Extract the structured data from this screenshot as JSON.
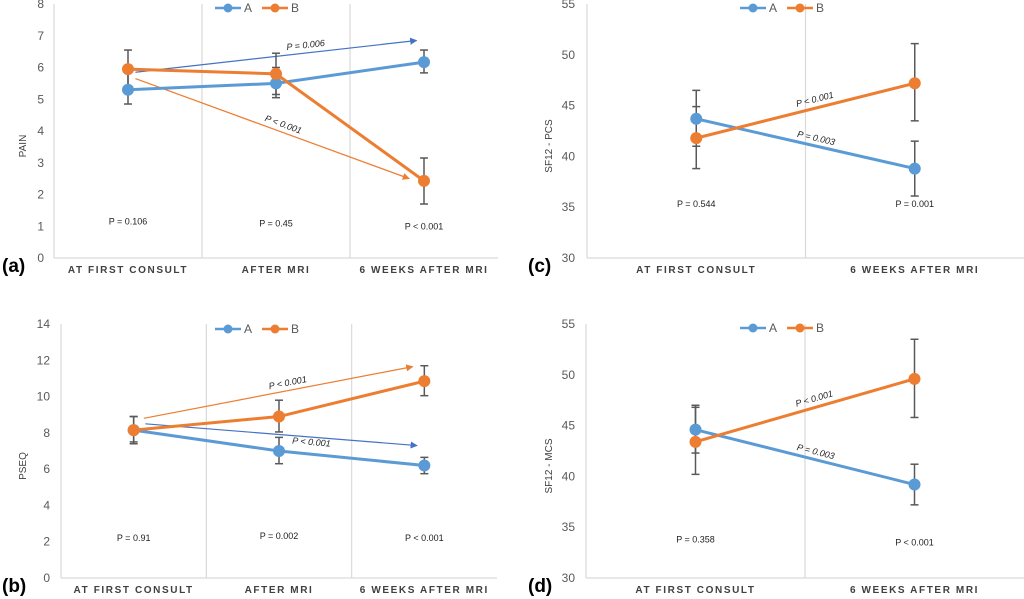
{
  "colors": {
    "A": "#5b9bd5",
    "B": "#ed7d31",
    "arrowA": "#4472c4",
    "arrowB": "#ed7d31",
    "errorbar": "#595959",
    "grid": "#d9d9d9"
  },
  "legend": [
    "A",
    "B"
  ],
  "chart_data": [
    {
      "panel": "(a)",
      "type": "line",
      "ylabel": "PAIN",
      "ylim": [
        0,
        8
      ],
      "yticks": [
        0,
        1,
        2,
        3,
        4,
        5,
        6,
        7,
        8
      ],
      "categories": [
        "AT FIRST CONSULT",
        "AFTER MRI",
        "6 WEEKS AFTER MRI"
      ],
      "series": [
        {
          "name": "A",
          "values": [
            5.3,
            5.5,
            6.17
          ],
          "err_low": [
            4.85,
            5.05,
            5.83
          ],
          "err_high": [
            5.9,
            6.0,
            6.55
          ]
        },
        {
          "name": "B",
          "values": [
            5.95,
            5.8,
            2.43
          ],
          "err_low": [
            5.4,
            5.15,
            1.7
          ],
          "err_high": [
            6.55,
            6.45,
            3.15
          ]
        }
      ],
      "group_pvalues": [
        "P = 0.106",
        "P = 0.45",
        "P < 0.001"
      ],
      "group_pvalue_levels": [
        1.05,
        1.0,
        0.9
      ],
      "trend_arrows": [
        {
          "series": "A",
          "label": "P = 0.006",
          "from": [
            0.05,
            5.85
          ],
          "to": [
            1.95,
            6.85
          ]
        },
        {
          "series": "B",
          "label": "P < 0.001",
          "from": [
            0.05,
            5.65
          ],
          "to": [
            1.9,
            2.5
          ]
        }
      ],
      "legend": "top-center",
      "grid": "vertical-category-separators"
    },
    {
      "panel": "(b)",
      "type": "line",
      "ylabel": "PSEQ",
      "ylim": [
        0,
        14
      ],
      "yticks": [
        0,
        2,
        4,
        6,
        8,
        10,
        12,
        14
      ],
      "categories": [
        "AT FIRST CONSULT",
        "AFTER MRI",
        "6 WEEKS AFTER MRI"
      ],
      "series": [
        {
          "name": "A",
          "values": [
            8.15,
            7.0,
            6.2
          ],
          "err_low": [
            7.4,
            6.3,
            5.75
          ],
          "err_high": [
            8.9,
            7.75,
            6.65
          ]
        },
        {
          "name": "B",
          "values": [
            8.15,
            8.9,
            10.85
          ],
          "err_low": [
            7.5,
            8.05,
            10.05
          ],
          "err_high": [
            8.9,
            9.8,
            11.7
          ]
        }
      ],
      "group_pvalues": [
        "P = 0.91",
        "P = 0.002",
        "P < 0.001"
      ],
      "group_pvalue_levels": [
        2.05,
        2.15,
        2.05
      ],
      "trend_arrows": [
        {
          "series": "B",
          "label": "P < 0.001",
          "from": [
            0.07,
            8.8
          ],
          "to": [
            1.92,
            11.65
          ]
        },
        {
          "series": "A",
          "label": "P < 0.001",
          "from": [
            0.08,
            8.5
          ],
          "to": [
            1.95,
            7.3
          ]
        }
      ],
      "legend": "top-center",
      "grid": "vertical-category-separators"
    },
    {
      "panel": "(c)",
      "type": "line",
      "ylabel": "SF12 - PCS",
      "ylim": [
        30,
        55
      ],
      "yticks": [
        30,
        35,
        40,
        45,
        50,
        55
      ],
      "categories": [
        "AT FIRST CONSULT",
        "6 WEEKS AFTER MRI"
      ],
      "series": [
        {
          "name": "A",
          "values": [
            43.7,
            38.8
          ],
          "err_low": [
            41.0,
            36.1
          ],
          "err_high": [
            46.5,
            41.5
          ]
        },
        {
          "name": "B",
          "values": [
            41.8,
            47.2
          ],
          "err_low": [
            38.8,
            43.5
          ],
          "err_high": [
            44.9,
            51.1
          ]
        }
      ],
      "group_pvalues": [
        "P = 0.544",
        "P = 0.001"
      ],
      "group_pvalue_levels": [
        35.0,
        35.0
      ],
      "line_labels": [
        {
          "series": "B",
          "label": "P < 0.001"
        },
        {
          "series": "A",
          "label": "P = 0.003"
        }
      ],
      "legend": "top-center",
      "grid": "vertical-category-separators"
    },
    {
      "panel": "(d)",
      "type": "line",
      "ylabel": "SF12 - MCS",
      "ylim": [
        30,
        55
      ],
      "yticks": [
        30,
        35,
        40,
        45,
        50,
        55
      ],
      "categories": [
        "AT FIRST CONSULT",
        "6 WEEKS AFTER MRI"
      ],
      "series": [
        {
          "name": "A",
          "values": [
            44.6,
            39.2
          ],
          "err_low": [
            42.3,
            37.2
          ],
          "err_high": [
            46.8,
            41.2
          ]
        },
        {
          "name": "B",
          "values": [
            43.4,
            49.6
          ],
          "err_low": [
            40.2,
            45.8
          ],
          "err_high": [
            47.0,
            53.5
          ]
        }
      ],
      "group_pvalues": [
        "P = 0.358",
        "P < 0.001"
      ],
      "group_pvalue_levels": [
        33.5,
        33.2
      ],
      "line_labels": [
        {
          "series": "B",
          "label": "P < 0.001"
        },
        {
          "series": "A",
          "label": "P = 0.003"
        }
      ],
      "legend": "top-center",
      "grid": "vertical-category-separators"
    }
  ]
}
